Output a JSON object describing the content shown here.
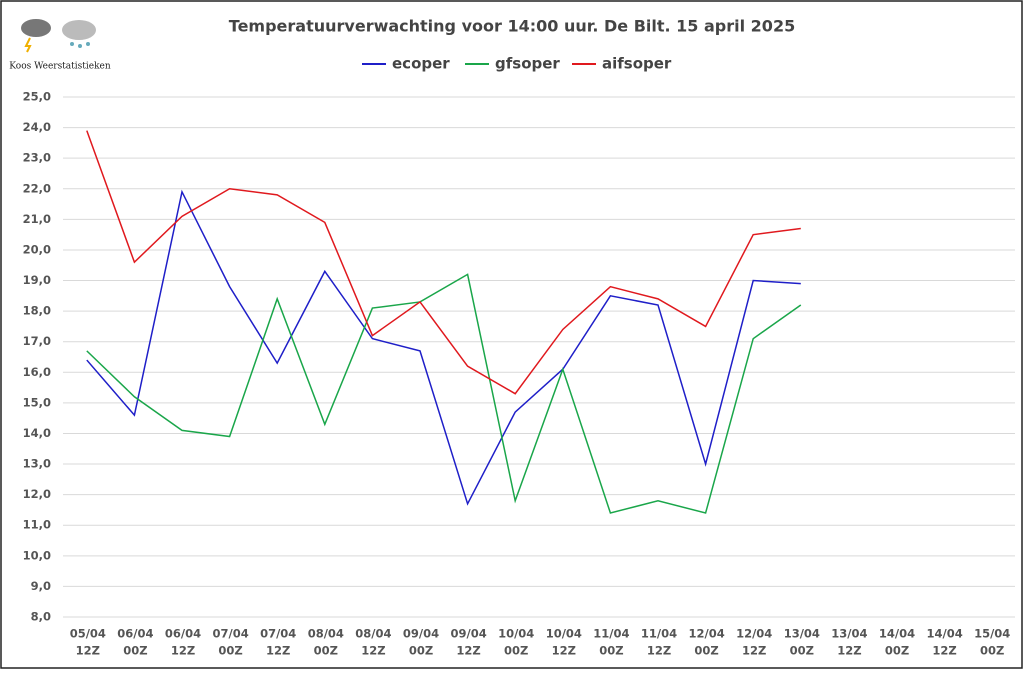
{
  "brand": "Koos Weerstatistieken",
  "chart_data": {
    "type": "line",
    "title": "Temperatuurverwachting voor 14:00 uur. De Bilt. 15 april 2025",
    "categories": [
      [
        "05/04",
        "12Z"
      ],
      [
        "06/04",
        "00Z"
      ],
      [
        "06/04",
        "12Z"
      ],
      [
        "07/04",
        "00Z"
      ],
      [
        "07/04",
        "12Z"
      ],
      [
        "08/04",
        "00Z"
      ],
      [
        "08/04",
        "12Z"
      ],
      [
        "09/04",
        "00Z"
      ],
      [
        "09/04",
        "12Z"
      ],
      [
        "10/04",
        "00Z"
      ],
      [
        "10/04",
        "12Z"
      ],
      [
        "11/04",
        "00Z"
      ],
      [
        "11/04",
        "12Z"
      ],
      [
        "12/04",
        "00Z"
      ],
      [
        "12/04",
        "12Z"
      ],
      [
        "13/04",
        "00Z"
      ],
      [
        "13/04",
        "12Z"
      ],
      [
        "14/04",
        "00Z"
      ],
      [
        "14/04",
        "12Z"
      ],
      [
        "15/04",
        "00Z"
      ]
    ],
    "series": [
      {
        "name": "ecoper",
        "color": "#1f1fc8",
        "values": [
          16.4,
          14.6,
          21.9,
          18.8,
          16.3,
          19.3,
          17.1,
          16.7,
          11.7,
          14.7,
          16.1,
          18.5,
          18.2,
          13.0,
          19.0,
          18.9,
          null,
          null,
          null,
          null
        ]
      },
      {
        "name": "gfsoper",
        "color": "#1aa64a",
        "values": [
          16.7,
          15.2,
          14.1,
          13.9,
          18.4,
          14.3,
          18.1,
          18.3,
          19.2,
          11.8,
          16.1,
          11.4,
          11.8,
          11.4,
          17.1,
          18.2,
          null,
          null,
          null,
          null
        ]
      },
      {
        "name": "aifsoper",
        "color": "#e0191e",
        "values": [
          23.9,
          19.6,
          21.1,
          22.0,
          21.8,
          20.9,
          17.2,
          18.3,
          16.2,
          15.3,
          17.4,
          18.8,
          18.4,
          17.5,
          20.5,
          20.7,
          null,
          null,
          null,
          null
        ]
      }
    ],
    "ylim": [
      8,
      25
    ],
    "yticks": [
      {
        "value": 8,
        "label": "8,0"
      },
      {
        "value": 9,
        "label": "9,0"
      },
      {
        "value": 10,
        "label": "10,0"
      },
      {
        "value": 11,
        "label": "11,0"
      },
      {
        "value": 12,
        "label": "12,0"
      },
      {
        "value": 13,
        "label": "13,0"
      },
      {
        "value": 14,
        "label": "14,0"
      },
      {
        "value": 15,
        "label": "15,0"
      },
      {
        "value": 16,
        "label": "16,0"
      },
      {
        "value": 17,
        "label": "17,0"
      },
      {
        "value": 18,
        "label": "18,0"
      },
      {
        "value": 19,
        "label": "19,0"
      },
      {
        "value": 20,
        "label": "20,0"
      },
      {
        "value": 21,
        "label": "21,0"
      },
      {
        "value": 22,
        "label": "22,0"
      },
      {
        "value": 23,
        "label": "23,0"
      },
      {
        "value": 24,
        "label": "24,0"
      },
      {
        "value": 25,
        "label": "25,0"
      }
    ],
    "grid": true,
    "legend": "top"
  }
}
